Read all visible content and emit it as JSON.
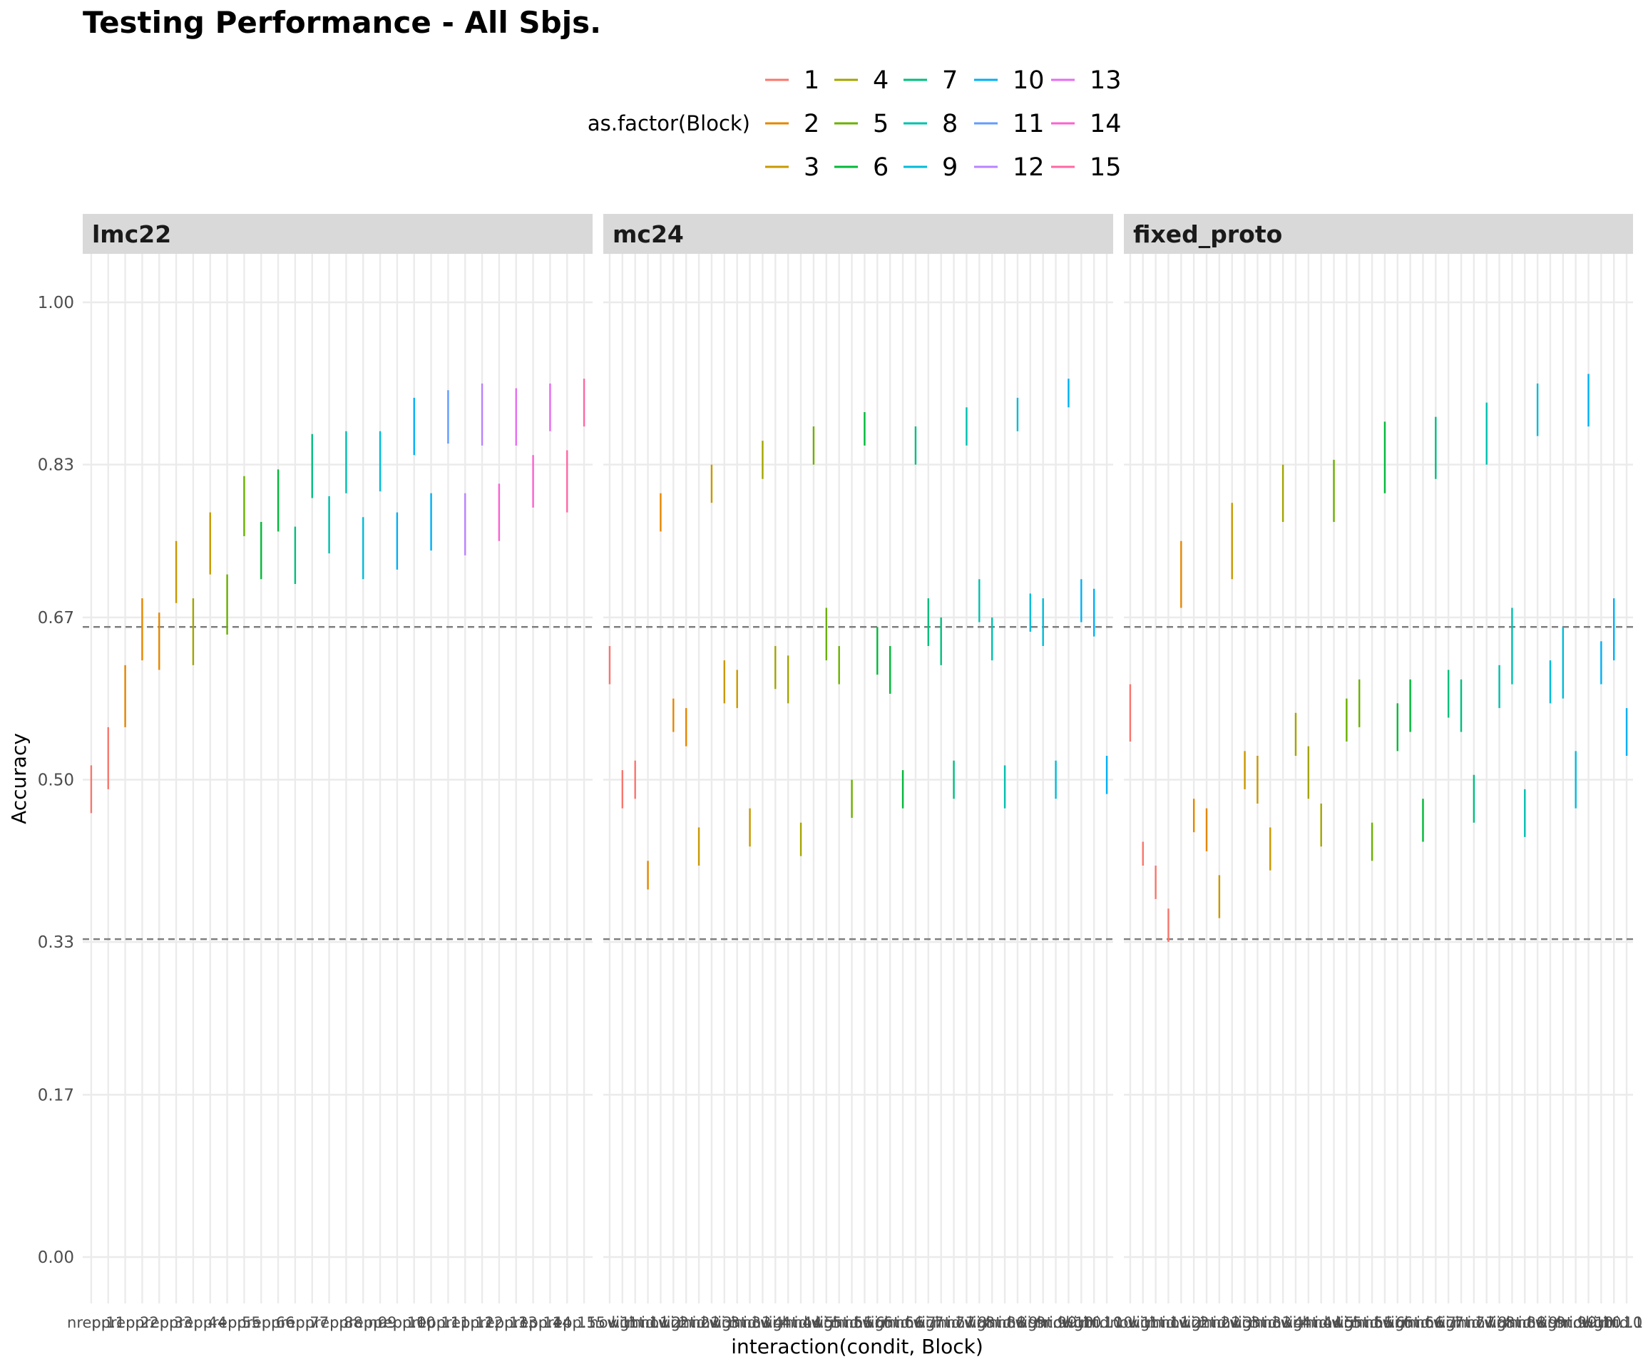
{
  "chart_data": {
    "type": "errorbar",
    "title": "Testing Performance - All Sbjs.",
    "xlabel": "interaction(condit, Block)",
    "ylabel": "Accuracy",
    "ylim": [
      0,
      1.05
    ],
    "y_ticks": [
      "0.00",
      "0.17",
      "0.33",
      "0.50",
      "0.67",
      "0.83",
      "1.00"
    ],
    "reference_lines": [
      0.333,
      0.66
    ],
    "grid": true,
    "legend": {
      "title": "as.factor(Block)",
      "position": "top",
      "entries": [
        {
          "label": "1",
          "color": "#F8766D"
        },
        {
          "label": "2",
          "color": "#E58700"
        },
        {
          "label": "3",
          "color": "#C99800"
        },
        {
          "label": "4",
          "color": "#A3A500"
        },
        {
          "label": "5",
          "color": "#6BB100"
        },
        {
          "label": "6",
          "color": "#00BA38"
        },
        {
          "label": "7",
          "color": "#00BF7D"
        },
        {
          "label": "8",
          "color": "#00C0AF"
        },
        {
          "label": "9",
          "color": "#00BCD8"
        },
        {
          "label": "10",
          "color": "#00B0F6"
        },
        {
          "label": "11",
          "color": "#619CFF"
        },
        {
          "label": "12",
          "color": "#B983FF"
        },
        {
          "label": "13",
          "color": "#E76BF3"
        },
        {
          "label": "14",
          "color": "#FD61D1"
        },
        {
          "label": "15",
          "color": "#FF67A4"
        }
      ]
    },
    "panels": [
      {
        "name": "lmc22",
        "x_tick_labels": [
          "nrep.1",
          "pp.1",
          "nrep.2",
          "pp.2",
          "nrep.3",
          "pp.3",
          "nrep.4",
          "pp.4",
          "nrep.5",
          "pp.5",
          "nrep.6",
          "pp.6",
          "nrep.7",
          "pp.7",
          "nrep.8",
          "pp.8",
          "nrep.9",
          "pp.9",
          "nrep.10",
          "pp.10",
          "nrep.11",
          "pp.11",
          "nrep.12",
          "pp.12",
          "nrep.13",
          "pp.13",
          "nrep.14",
          "pp.14",
          "nrep.15",
          "pp.15"
        ],
        "bars": [
          {
            "block": 1,
            "lo": 0.465,
            "hi": 0.515
          },
          {
            "block": 1,
            "lo": 0.49,
            "hi": 0.555
          },
          {
            "block": 2,
            "lo": 0.555,
            "hi": 0.62
          },
          {
            "block": 2,
            "lo": 0.625,
            "hi": 0.69
          },
          {
            "block": 2,
            "lo": 0.615,
            "hi": 0.675
          },
          {
            "block": 3,
            "lo": 0.685,
            "hi": 0.75
          },
          {
            "block": 4,
            "lo": 0.62,
            "hi": 0.69
          },
          {
            "block": 3,
            "lo": 0.715,
            "hi": 0.78
          },
          {
            "block": 5,
            "lo": 0.652,
            "hi": 0.715
          },
          {
            "block": 5,
            "lo": 0.755,
            "hi": 0.818
          },
          {
            "block": 6,
            "lo": 0.71,
            "hi": 0.77
          },
          {
            "block": 6,
            "lo": 0.76,
            "hi": 0.825
          },
          {
            "block": 7,
            "lo": 0.705,
            "hi": 0.765
          },
          {
            "block": 7,
            "lo": 0.795,
            "hi": 0.862
          },
          {
            "block": 8,
            "lo": 0.737,
            "hi": 0.797
          },
          {
            "block": 8,
            "lo": 0.8,
            "hi": 0.865
          },
          {
            "block": 9,
            "lo": 0.71,
            "hi": 0.775
          },
          {
            "block": 9,
            "lo": 0.802,
            "hi": 0.865
          },
          {
            "block": 10,
            "lo": 0.72,
            "hi": 0.78
          },
          {
            "block": 10,
            "lo": 0.84,
            "hi": 0.9
          },
          {
            "block": 10,
            "lo": 0.74,
            "hi": 0.8
          },
          {
            "block": 11,
            "lo": 0.852,
            "hi": 0.908
          },
          {
            "block": 12,
            "lo": 0.735,
            "hi": 0.8
          },
          {
            "block": 12,
            "lo": 0.85,
            "hi": 0.915
          },
          {
            "block": 14,
            "lo": 0.75,
            "hi": 0.81
          },
          {
            "block": 13,
            "lo": 0.85,
            "hi": 0.91
          },
          {
            "block": 14,
            "lo": 0.785,
            "hi": 0.84
          },
          {
            "block": 13,
            "lo": 0.865,
            "hi": 0.915
          },
          {
            "block": 15,
            "lo": 0.78,
            "hi": 0.845
          },
          {
            "block": 15,
            "lo": 0.87,
            "hi": 0.92
          }
        ]
      },
      {
        "name": "mc24",
        "x_tick_labels": [
          "nov.1",
          "wi.1",
          "light.1",
          "mid.1",
          "nov.2",
          "wi.2",
          "light.2",
          "mid.2",
          "nov.3",
          "wi.3",
          "light.3",
          "mid.3",
          "nov.4",
          "wi.4",
          "light.4",
          "mid.4",
          "nov.5",
          "wi.5",
          "light.5",
          "mid.5",
          "nov.6",
          "wi.6",
          "light.6",
          "mid.6",
          "nov.7",
          "wi.7",
          "light.7",
          "mid.7",
          "nov.8",
          "wi.8",
          "light.8",
          "mid.8",
          "nov.9",
          "wi.9",
          "light.9",
          "mid.9",
          "nov.10",
          "wi.10",
          "light.10",
          "mid.10"
        ],
        "bars": [
          {
            "block": 1,
            "lo": 0.6,
            "hi": 0.64
          },
          {
            "block": 1,
            "lo": 0.47,
            "hi": 0.51
          },
          {
            "block": 1,
            "lo": 0.48,
            "hi": 0.52
          },
          {
            "block": 2,
            "lo": 0.385,
            "hi": 0.415
          },
          {
            "block": 2,
            "lo": 0.76,
            "hi": 0.8
          },
          {
            "block": 2,
            "lo": 0.55,
            "hi": 0.585
          },
          {
            "block": 2,
            "lo": 0.535,
            "hi": 0.575
          },
          {
            "block": 3,
            "lo": 0.41,
            "hi": 0.45
          },
          {
            "block": 3,
            "lo": 0.79,
            "hi": 0.83
          },
          {
            "block": 3,
            "lo": 0.58,
            "hi": 0.625
          },
          {
            "block": 3,
            "lo": 0.575,
            "hi": 0.615
          },
          {
            "block": 3,
            "lo": 0.43,
            "hi": 0.47
          },
          {
            "block": 4,
            "lo": 0.815,
            "hi": 0.855
          },
          {
            "block": 4,
            "lo": 0.595,
            "hi": 0.64
          },
          {
            "block": 4,
            "lo": 0.58,
            "hi": 0.63
          },
          {
            "block": 4,
            "lo": 0.42,
            "hi": 0.455
          },
          {
            "block": 5,
            "lo": 0.83,
            "hi": 0.87
          },
          {
            "block": 5,
            "lo": 0.625,
            "hi": 0.68
          },
          {
            "block": 5,
            "lo": 0.6,
            "hi": 0.64
          },
          {
            "block": 5,
            "lo": 0.46,
            "hi": 0.5
          },
          {
            "block": 6,
            "lo": 0.85,
            "hi": 0.885
          },
          {
            "block": 6,
            "lo": 0.61,
            "hi": 0.66
          },
          {
            "block": 6,
            "lo": 0.59,
            "hi": 0.64
          },
          {
            "block": 6,
            "lo": 0.47,
            "hi": 0.51
          },
          {
            "block": 7,
            "lo": 0.83,
            "hi": 0.87
          },
          {
            "block": 7,
            "lo": 0.64,
            "hi": 0.69
          },
          {
            "block": 7,
            "lo": 0.62,
            "hi": 0.67
          },
          {
            "block": 7,
            "lo": 0.48,
            "hi": 0.52
          },
          {
            "block": 8,
            "lo": 0.85,
            "hi": 0.89
          },
          {
            "block": 8,
            "lo": 0.665,
            "hi": 0.71
          },
          {
            "block": 8,
            "lo": 0.625,
            "hi": 0.67
          },
          {
            "block": 8,
            "lo": 0.47,
            "hi": 0.515
          },
          {
            "block": 9,
            "lo": 0.865,
            "hi": 0.9
          },
          {
            "block": 9,
            "lo": 0.655,
            "hi": 0.695
          },
          {
            "block": 9,
            "lo": 0.64,
            "hi": 0.69
          },
          {
            "block": 9,
            "lo": 0.48,
            "hi": 0.52
          },
          {
            "block": 10,
            "lo": 0.89,
            "hi": 0.92
          },
          {
            "block": 10,
            "lo": 0.665,
            "hi": 0.71
          },
          {
            "block": 10,
            "lo": 0.65,
            "hi": 0.7
          },
          {
            "block": 10,
            "lo": 0.485,
            "hi": 0.525
          }
        ]
      },
      {
        "name": "fixed_proto",
        "x_tick_labels": [
          "nov.1",
          "wi.1",
          "light.1",
          "mid.1",
          "nov.2",
          "wi.2",
          "light.2",
          "mid.2",
          "nov.3",
          "wi.3",
          "light.3",
          "mid.3",
          "nov.4",
          "wi.4",
          "light.4",
          "mid.4",
          "nov.5",
          "wi.5",
          "light.5",
          "mid.5",
          "nov.6",
          "wi.6",
          "light.6",
          "mid.6",
          "nov.7",
          "wi.7",
          "light.7",
          "mid.7",
          "nov.8",
          "wi.8",
          "light.8",
          "mid.8",
          "nov.9",
          "wi.9",
          "light.9",
          "mid.9",
          "nov.10",
          "wi.10",
          "light.10",
          "mid.10"
        ],
        "bars": [
          {
            "block": 1,
            "lo": 0.54,
            "hi": 0.6
          },
          {
            "block": 1,
            "lo": 0.41,
            "hi": 0.435
          },
          {
            "block": 1,
            "lo": 0.375,
            "hi": 0.41
          },
          {
            "block": 1,
            "lo": 0.33,
            "hi": 0.365
          },
          {
            "block": 2,
            "lo": 0.68,
            "hi": 0.75
          },
          {
            "block": 2,
            "lo": 0.445,
            "hi": 0.48
          },
          {
            "block": 2,
            "lo": 0.425,
            "hi": 0.47
          },
          {
            "block": 3,
            "lo": 0.355,
            "hi": 0.4
          },
          {
            "block": 3,
            "lo": 0.71,
            "hi": 0.79
          },
          {
            "block": 3,
            "lo": 0.49,
            "hi": 0.53
          },
          {
            "block": 3,
            "lo": 0.475,
            "hi": 0.525
          },
          {
            "block": 3,
            "lo": 0.405,
            "hi": 0.45
          },
          {
            "block": 4,
            "lo": 0.77,
            "hi": 0.83
          },
          {
            "block": 4,
            "lo": 0.525,
            "hi": 0.57
          },
          {
            "block": 4,
            "lo": 0.48,
            "hi": 0.535
          },
          {
            "block": 4,
            "lo": 0.43,
            "hi": 0.475
          },
          {
            "block": 5,
            "lo": 0.77,
            "hi": 0.835
          },
          {
            "block": 5,
            "lo": 0.54,
            "hi": 0.585
          },
          {
            "block": 5,
            "lo": 0.555,
            "hi": 0.605
          },
          {
            "block": 5,
            "lo": 0.415,
            "hi": 0.455
          },
          {
            "block": 6,
            "lo": 0.8,
            "hi": 0.875
          },
          {
            "block": 6,
            "lo": 0.53,
            "hi": 0.58
          },
          {
            "block": 6,
            "lo": 0.55,
            "hi": 0.605
          },
          {
            "block": 6,
            "lo": 0.435,
            "hi": 0.48
          },
          {
            "block": 7,
            "lo": 0.815,
            "hi": 0.88
          },
          {
            "block": 7,
            "lo": 0.565,
            "hi": 0.615
          },
          {
            "block": 7,
            "lo": 0.55,
            "hi": 0.605
          },
          {
            "block": 7,
            "lo": 0.455,
            "hi": 0.505
          },
          {
            "block": 8,
            "lo": 0.83,
            "hi": 0.895
          },
          {
            "block": 8,
            "lo": 0.575,
            "hi": 0.62
          },
          {
            "block": 8,
            "lo": 0.6,
            "hi": 0.68
          },
          {
            "block": 8,
            "lo": 0.44,
            "hi": 0.49
          },
          {
            "block": 9,
            "lo": 0.86,
            "hi": 0.915
          },
          {
            "block": 9,
            "lo": 0.58,
            "hi": 0.625
          },
          {
            "block": 9,
            "lo": 0.585,
            "hi": 0.66
          },
          {
            "block": 9,
            "lo": 0.47,
            "hi": 0.53
          },
          {
            "block": 10,
            "lo": 0.87,
            "hi": 0.925
          },
          {
            "block": 10,
            "lo": 0.6,
            "hi": 0.645
          },
          {
            "block": 10,
            "lo": 0.625,
            "hi": 0.69
          },
          {
            "block": 10,
            "lo": 0.525,
            "hi": 0.575
          }
        ]
      }
    ]
  }
}
